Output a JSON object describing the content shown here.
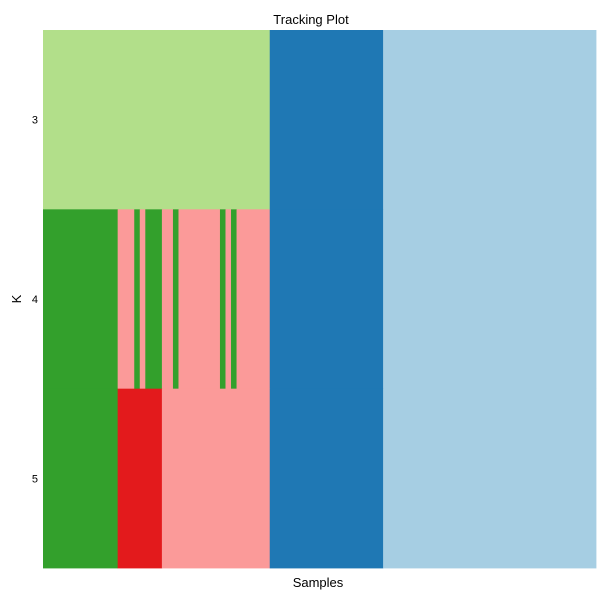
{
  "chart_data": {
    "type": "heatmap",
    "title": "Tracking Plot",
    "xlabel": "Samples",
    "ylabel": "K",
    "rows": [
      "3",
      "4",
      "5"
    ],
    "n_samples": 200,
    "rows_data": [
      {
        "k": "3",
        "segments": [
          {
            "from": 0,
            "to": 82,
            "color": "#b2df8a"
          },
          {
            "from": 82,
            "to": 123,
            "color": "#1f78b4"
          },
          {
            "from": 123,
            "to": 200,
            "color": "#a6cee3"
          }
        ]
      },
      {
        "k": "4",
        "segments": [
          {
            "from": 0,
            "to": 27,
            "color": "#33a02c"
          },
          {
            "from": 27,
            "to": 33,
            "color": "#fb9a99"
          },
          {
            "from": 33,
            "to": 35,
            "color": "#33a02c"
          },
          {
            "from": 35,
            "to": 37,
            "color": "#fb9a99"
          },
          {
            "from": 37,
            "to": 43,
            "color": "#33a02c"
          },
          {
            "from": 43,
            "to": 47,
            "color": "#fb9a99"
          },
          {
            "from": 47,
            "to": 49,
            "color": "#33a02c"
          },
          {
            "from": 49,
            "to": 64,
            "color": "#fb9a99"
          },
          {
            "from": 64,
            "to": 66,
            "color": "#33a02c"
          },
          {
            "from": 66,
            "to": 68,
            "color": "#fb9a99"
          },
          {
            "from": 68,
            "to": 70,
            "color": "#33a02c"
          },
          {
            "from": 70,
            "to": 82,
            "color": "#fb9a99"
          },
          {
            "from": 82,
            "to": 123,
            "color": "#1f78b4"
          },
          {
            "from": 123,
            "to": 200,
            "color": "#a6cee3"
          }
        ]
      },
      {
        "k": "5",
        "segments": [
          {
            "from": 0,
            "to": 27,
            "color": "#33a02c"
          },
          {
            "from": 27,
            "to": 43,
            "color": "#e31a1c"
          },
          {
            "from": 43,
            "to": 82,
            "color": "#fb9a99"
          },
          {
            "from": 82,
            "to": 123,
            "color": "#1f78b4"
          },
          {
            "from": 123,
            "to": 200,
            "color": "#a6cee3"
          }
        ]
      }
    ]
  }
}
